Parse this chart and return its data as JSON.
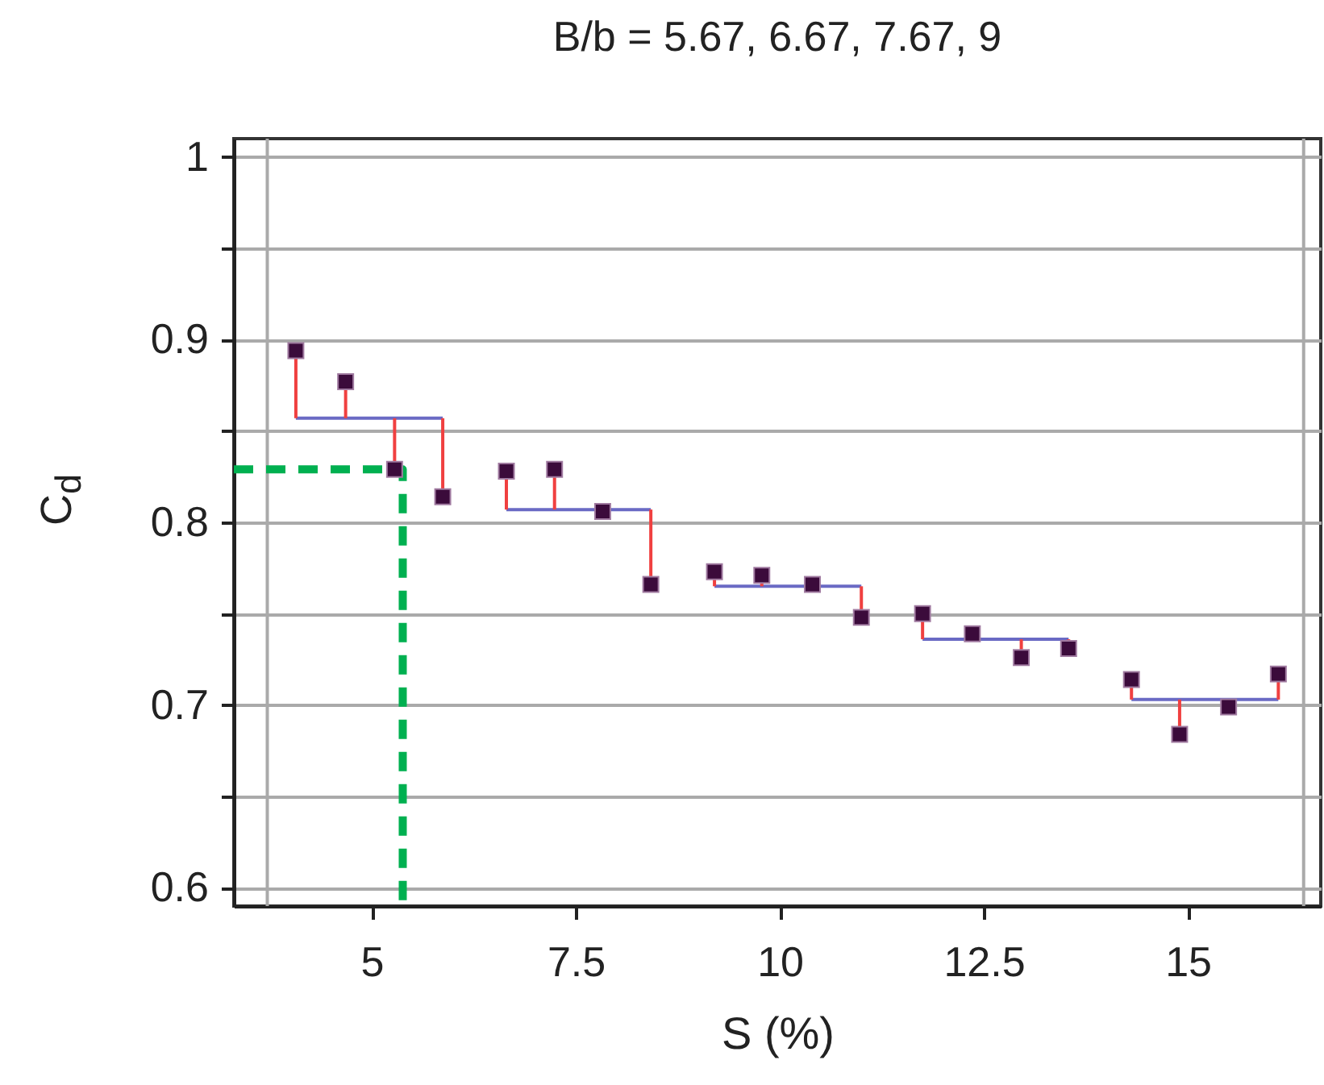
{
  "chart_data": {
    "type": "scatter",
    "title": "B/b  =  5.67,  6.67,  7.67,  9",
    "xlabel": "S (%)",
    "ylabel": "C$_{d}$",
    "xlim": [
      3.31,
      16.63
    ],
    "ylim": [
      0.59,
      1.01
    ],
    "xticks": [
      5,
      7.5,
      10,
      12.5,
      15
    ],
    "yticks": [
      0.6,
      {
        "value": 0.65,
        "label": null
      },
      0.7,
      {
        "value": 0.75,
        "label": null
      },
      0.8,
      {
        "value": 0.85,
        "label": null
      },
      0.9,
      {
        "value": 0.95,
        "label": null
      },
      1
    ],
    "grid": "y",
    "ref_lines": [
      {
        "axis": "x",
        "value": 3.72,
        "color": "#aaaaaa"
      },
      {
        "axis": "x",
        "value": 16.42,
        "color": "#aaaaaa"
      }
    ],
    "series": [
      {
        "type": "line",
        "color": "#00b050",
        "line_style": "dashed",
        "x": [
          3.31,
          5.38,
          5.38
        ],
        "values": [
          0.829,
          0.829,
          0.59
        ]
      },
      {
        "type": "line",
        "color": "#6a6ac4",
        "x": [
          4.07,
          5.87
        ],
        "values": [
          0.857,
          0.857
        ]
      },
      {
        "type": "line",
        "color": "#6a6ac4",
        "x": [
          6.65,
          8.42
        ],
        "values": [
          0.807,
          0.807
        ]
      },
      {
        "type": "line",
        "color": "#6a6ac4",
        "x": [
          9.2,
          11.0
        ],
        "values": [
          0.765,
          0.765
        ]
      },
      {
        "type": "line",
        "color": "#6a6ac4",
        "x": [
          11.75,
          13.54
        ],
        "values": [
          0.736,
          0.736
        ]
      },
      {
        "type": "line",
        "color": "#6a6ac4",
        "x": [
          14.31,
          16.11
        ],
        "values": [
          0.703,
          0.703
        ]
      },
      {
        "color": "#3b0b3b",
        "marker": "square",
        "x": [
          4.07,
          4.68,
          5.28,
          5.87,
          6.65,
          7.24,
          7.83,
          8.42,
          9.2,
          9.78,
          10.4,
          11.0,
          11.75,
          12.36,
          12.96,
          13.54,
          14.31,
          14.9,
          15.5,
          16.11
        ],
        "values": [
          0.894,
          0.877,
          0.829,
          0.814,
          0.828,
          0.829,
          0.806,
          0.766,
          0.773,
          0.771,
          0.766,
          0.748,
          0.75,
          0.739,
          0.726,
          0.731,
          0.714,
          0.684,
          0.699,
          0.717
        ],
        "errors": [
          [
            0.857,
            0.894
          ],
          [
            0.857,
            0.877
          ],
          [
            0.829,
            0.857
          ],
          [
            0.814,
            0.857
          ],
          [
            0.807,
            0.828
          ],
          [
            0.807,
            0.829
          ],
          null,
          [
            0.766,
            0.807
          ],
          [
            0.765,
            0.773
          ],
          [
            0.765,
            0.771
          ],
          null,
          [
            0.748,
            0.765
          ],
          [
            0.736,
            0.75
          ],
          null,
          [
            0.726,
            0.736
          ],
          [
            0.731,
            0.736
          ],
          [
            0.703,
            0.714
          ],
          [
            0.684,
            0.703
          ],
          null,
          [
            0.703,
            0.717
          ]
        ]
      }
    ]
  }
}
